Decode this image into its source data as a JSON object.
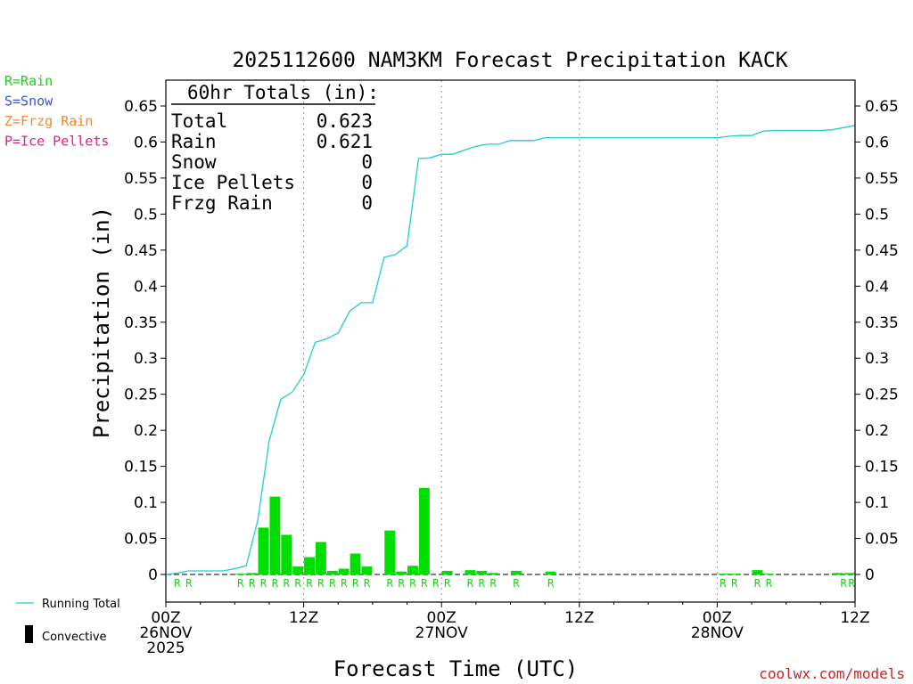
{
  "chart_data": {
    "type": "bar",
    "title": "2025112600 NAM3KM Forecast Precipitation KACK",
    "ylabel": "Precipitation (in)",
    "xlabel": "Forecast Time (UTC)",
    "ylim": [
      -0.005,
      0.68
    ],
    "xlim": [
      0,
      60
    ],
    "yticks": [
      0,
      0.05,
      0.1,
      0.15,
      0.2,
      0.25,
      0.3,
      0.35,
      0.4,
      0.45,
      0.5,
      0.55,
      0.6,
      0.65
    ],
    "ytick_labels": [
      "0",
      "0.05",
      "0.1",
      "0.15",
      "0.2",
      "0.25",
      "0.3",
      "0.35",
      "0.4",
      "0.45",
      "0.5",
      "0.55",
      "0.6",
      "0.65"
    ],
    "xticks": [
      {
        "hour": 0,
        "lines": [
          "00Z",
          "26NOV",
          "2025"
        ]
      },
      {
        "hour": 12,
        "lines": [
          "12Z"
        ]
      },
      {
        "hour": 24,
        "lines": [
          "00Z",
          "27NOV"
        ]
      },
      {
        "hour": 36,
        "lines": [
          "12Z"
        ]
      },
      {
        "hour": 48,
        "lines": [
          "00Z",
          "28NOV"
        ]
      },
      {
        "hour": 60,
        "lines": [
          "12Z"
        ]
      }
    ],
    "hourly_precip": [
      {
        "hour": 1,
        "value": 0.0
      },
      {
        "hour": 2,
        "value": 0.0
      },
      {
        "hour": 3,
        "value": 0.0
      },
      {
        "hour": 4,
        "value": 0.0
      },
      {
        "hour": 5,
        "value": 0.0
      },
      {
        "hour": 6,
        "value": 0.0
      },
      {
        "hour": 7,
        "value": 0.001
      },
      {
        "hour": 8,
        "value": 0.002
      },
      {
        "hour": 9,
        "value": 0.065
      },
      {
        "hour": 10,
        "value": 0.108
      },
      {
        "hour": 11,
        "value": 0.055
      },
      {
        "hour": 12,
        "value": 0.011
      },
      {
        "hour": 13,
        "value": 0.024
      },
      {
        "hour": 14,
        "value": 0.045
      },
      {
        "hour": 15,
        "value": 0.005
      },
      {
        "hour": 16,
        "value": 0.008
      },
      {
        "hour": 17,
        "value": 0.029
      },
      {
        "hour": 18,
        "value": 0.011
      },
      {
        "hour": 19,
        "value": 0.0
      },
      {
        "hour": 20,
        "value": 0.061
      },
      {
        "hour": 21,
        "value": 0.004
      },
      {
        "hour": 22,
        "value": 0.012
      },
      {
        "hour": 23,
        "value": 0.12
      },
      {
        "hour": 24,
        "value": 0.0
      },
      {
        "hour": 25,
        "value": 0.005
      },
      {
        "hour": 26,
        "value": 0.0
      },
      {
        "hour": 27,
        "value": 0.006
      },
      {
        "hour": 28,
        "value": 0.005
      },
      {
        "hour": 29,
        "value": 0.002
      },
      {
        "hour": 30,
        "value": 0.0
      },
      {
        "hour": 31,
        "value": 0.005
      },
      {
        "hour": 32,
        "value": 0.0
      },
      {
        "hour": 33,
        "value": 0.0
      },
      {
        "hour": 34,
        "value": 0.004
      },
      {
        "hour": 35,
        "value": 0.0
      },
      {
        "hour": 49,
        "value": 0.001
      },
      {
        "hour": 50,
        "value": 0.001
      },
      {
        "hour": 52,
        "value": 0.006
      },
      {
        "hour": 53,
        "value": 0.001
      },
      {
        "hour": 59,
        "value": 0.002
      },
      {
        "hour": 60,
        "value": 0.002
      }
    ],
    "running_total": [
      [
        0,
        0.0
      ],
      [
        1,
        0.002
      ],
      [
        2,
        0.005
      ],
      [
        3,
        0.005
      ],
      [
        4,
        0.005
      ],
      [
        5,
        0.005
      ],
      [
        6,
        0.008
      ],
      [
        7,
        0.012
      ],
      [
        8,
        0.075
      ],
      [
        9,
        0.185
      ],
      [
        10,
        0.243
      ],
      [
        11,
        0.253
      ],
      [
        12,
        0.277
      ],
      [
        13,
        0.322
      ],
      [
        14,
        0.327
      ],
      [
        15,
        0.335
      ],
      [
        16,
        0.365
      ],
      [
        17,
        0.377
      ],
      [
        18,
        0.377
      ],
      [
        19,
        0.44
      ],
      [
        20,
        0.444
      ],
      [
        21,
        0.456
      ],
      [
        22,
        0.577
      ],
      [
        23,
        0.578
      ],
      [
        24,
        0.583
      ],
      [
        25,
        0.583
      ],
      [
        26,
        0.589
      ],
      [
        27,
        0.594
      ],
      [
        28,
        0.597
      ],
      [
        29,
        0.597
      ],
      [
        30,
        0.602
      ],
      [
        31,
        0.602
      ],
      [
        32,
        0.602
      ],
      [
        33,
        0.606
      ],
      [
        34,
        0.606
      ],
      [
        35,
        0.606
      ],
      [
        36,
        0.606
      ],
      [
        37,
        0.606
      ],
      [
        38,
        0.606
      ],
      [
        39,
        0.606
      ],
      [
        40,
        0.606
      ],
      [
        41,
        0.606
      ],
      [
        42,
        0.606
      ],
      [
        43,
        0.606
      ],
      [
        44,
        0.606
      ],
      [
        45,
        0.606
      ],
      [
        46,
        0.606
      ],
      [
        47,
        0.606
      ],
      [
        48,
        0.606
      ],
      [
        49,
        0.608
      ],
      [
        50,
        0.609
      ],
      [
        51,
        0.609
      ],
      [
        52,
        0.615
      ],
      [
        53,
        0.616
      ],
      [
        54,
        0.616
      ],
      [
        55,
        0.616
      ],
      [
        56,
        0.616
      ],
      [
        57,
        0.616
      ],
      [
        58,
        0.617
      ],
      [
        59,
        0.62
      ],
      [
        60,
        0.623
      ]
    ],
    "precip_type_markers": [
      {
        "hour": 1.5,
        "label": "R"
      },
      {
        "hour": 2.5,
        "label": "R"
      },
      {
        "hour": 7,
        "label": "R"
      },
      {
        "hour": 8,
        "label": "R"
      },
      {
        "hour": 9,
        "label": "R"
      },
      {
        "hour": 10,
        "label": "R"
      },
      {
        "hour": 11,
        "label": "R"
      },
      {
        "hour": 12,
        "label": "R"
      },
      {
        "hour": 13,
        "label": "R"
      },
      {
        "hour": 14,
        "label": "R"
      },
      {
        "hour": 15,
        "label": "R"
      },
      {
        "hour": 16,
        "label": "R"
      },
      {
        "hour": 17,
        "label": "R"
      },
      {
        "hour": 18,
        "label": "R"
      },
      {
        "hour": 20,
        "label": "R"
      },
      {
        "hour": 21,
        "label": "R"
      },
      {
        "hour": 22,
        "label": "R"
      },
      {
        "hour": 23,
        "label": "R"
      },
      {
        "hour": 24,
        "label": "R"
      },
      {
        "hour": 25,
        "label": "R"
      },
      {
        "hour": 27,
        "label": "R"
      },
      {
        "hour": 28,
        "label": "R"
      },
      {
        "hour": 29,
        "label": "R"
      },
      {
        "hour": 31,
        "label": "R"
      },
      {
        "hour": 34,
        "label": "R"
      },
      {
        "hour": 49,
        "label": "R"
      },
      {
        "hour": 50,
        "label": "R"
      },
      {
        "hour": 52,
        "label": "R"
      },
      {
        "hour": 53,
        "label": "R"
      },
      {
        "hour": 59.5,
        "label": "R"
      },
      {
        "hour": 60.2,
        "label": "R"
      }
    ],
    "totals_box": {
      "heading": "60hr Totals (in):",
      "rows": [
        {
          "label": "Total",
          "value": "0.623"
        },
        {
          "label": "Rain",
          "value": "0.621"
        },
        {
          "label": "Snow",
          "value": "0"
        },
        {
          "label": "Ice Pellets",
          "value": "0"
        },
        {
          "label": "Frzg Rain",
          "value": "0"
        }
      ]
    },
    "type_legend": [
      {
        "text": "R=Rain",
        "color": "#22cc22"
      },
      {
        "text": "S=Snow",
        "color": "#3355dd"
      },
      {
        "text": "Z=Frzg Rain",
        "color": "#ee8833"
      },
      {
        "text": "P=Ice Pellets",
        "color": "#dd2288"
      }
    ],
    "series_legend": [
      {
        "text": "Running Total",
        "color": "#22cccc",
        "kind": "line"
      },
      {
        "text": "Convective",
        "color": "#000000",
        "kind": "bar"
      }
    ],
    "credit": "coolwx.com/models",
    "colors": {
      "bars": "#00dd00",
      "running_total": "#22cccc",
      "rain_marker": "#22cc22"
    }
  }
}
